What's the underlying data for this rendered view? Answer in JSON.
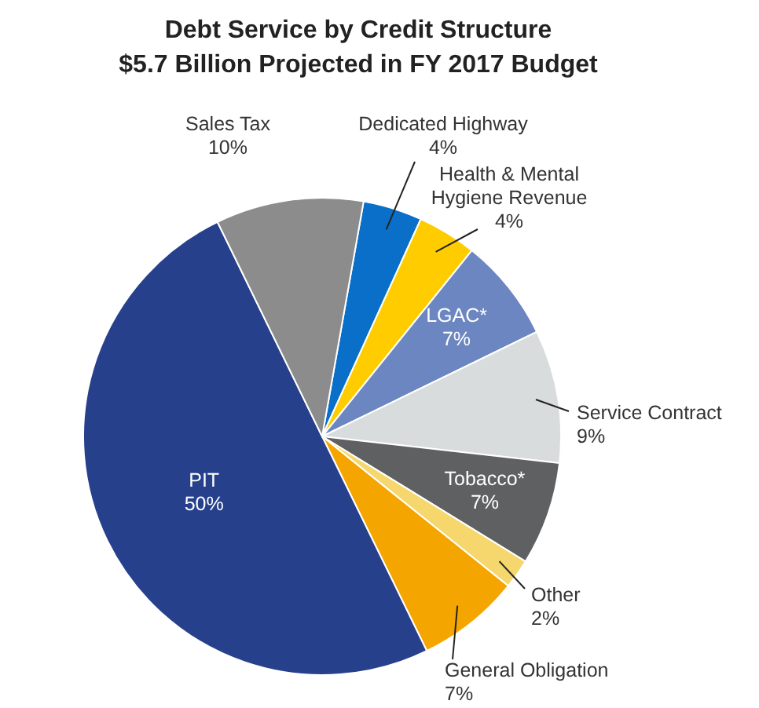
{
  "chart_data": {
    "type": "pie",
    "title": "Debt Service by Credit Structure",
    "subtitle": "$5.7 Billion Projected in FY 2017 Budget",
    "categories": [
      "Dedicated Highway",
      "Health & Mental Hygiene Revenue",
      "LGAC*",
      "Service Contract",
      "Tobacco*",
      "Other",
      "General Obligation",
      "PIT",
      "Sales Tax"
    ],
    "values": [
      4,
      4,
      7,
      9,
      7,
      2,
      7,
      50,
      10
    ],
    "colors": [
      "#0a6fc9",
      "#ffcc00",
      "#6b86c0",
      "#d9dcdd",
      "#5f6062",
      "#f5d76e",
      "#f5a500",
      "#26408c",
      "#8c8c8c"
    ],
    "value_labels": [
      "4%",
      "4%",
      "7%",
      "9%",
      "7%",
      "2%",
      "7%",
      "50%",
      "10%"
    ]
  }
}
